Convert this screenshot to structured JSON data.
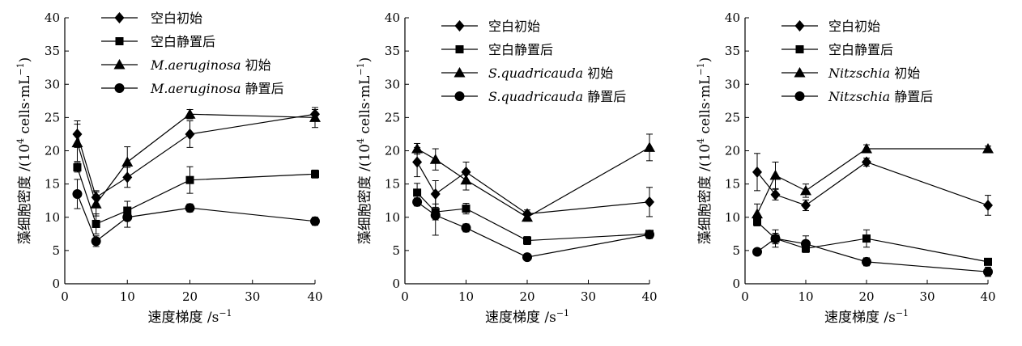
{
  "chart_data": [
    {
      "type": "line",
      "xlabel": "速度梯度 /s",
      "xlabel_sup": "−1",
      "ylabel": "藻细胞密度 /(10",
      "ylabel_sup1": "4",
      "ylabel_mid": " cells·mL",
      "ylabel_sup2": "−1",
      "ylabel_end": ")",
      "xlim": [
        0,
        40
      ],
      "ylim": [
        0,
        40
      ],
      "xticks": [
        "0",
        "10",
        "20",
        "30",
        "40"
      ],
      "yticks": [
        "0",
        "5",
        "10",
        "15",
        "20",
        "25",
        "30",
        "35",
        "40"
      ],
      "grid": false,
      "legend_position": "top-left",
      "x": [
        2,
        5,
        10,
        20,
        40
      ],
      "series": [
        {
          "name": "空白初始",
          "species": "",
          "label": "空白初始",
          "marker": "diamond",
          "values": [
            22.5,
            13,
            16,
            22.5,
            25.5
          ],
          "errors": [
            2,
            1,
            1.5,
            2,
            0.7
          ]
        },
        {
          "name": "空白静置后",
          "species": "",
          "label": "空白静置后",
          "marker": "square",
          "values": [
            17.5,
            9,
            11,
            15.6,
            16.5
          ],
          "errors": [
            0.7,
            1.5,
            1.4,
            2,
            0.6
          ]
        },
        {
          "name": "M.aeruginosa 初始",
          "species": "M.aeruginosa",
          "label": " 初始",
          "marker": "triangle",
          "values": [
            21.2,
            12,
            18.3,
            25.5,
            25
          ],
          "errors": [
            2.8,
            1.8,
            2.3,
            0.7,
            1.5
          ]
        },
        {
          "name": "M.aeruginosa 静置后",
          "species": "M.aeruginosa",
          "label": " 静置后",
          "marker": "circle",
          "values": [
            13.5,
            6.4,
            10,
            11.4,
            9.4
          ],
          "errors": [
            2.2,
            0.8,
            1.5,
            0.6,
            0.6
          ]
        }
      ]
    },
    {
      "type": "line",
      "xlabel": "速度梯度 /s",
      "xlabel_sup": "−1",
      "ylabel": "藻细胞密度 /(10",
      "ylabel_sup1": "4",
      "ylabel_mid": " cells·mL",
      "ylabel_sup2": "−1",
      "ylabel_end": ")",
      "xlim": [
        0,
        40
      ],
      "ylim": [
        0,
        40
      ],
      "xticks": [
        "0",
        "10",
        "20",
        "30",
        "40"
      ],
      "yticks": [
        "0",
        "5",
        "10",
        "15",
        "20",
        "25",
        "30",
        "35",
        "40"
      ],
      "grid": false,
      "legend_position": "top-left",
      "x": [
        2,
        5,
        10,
        20,
        40
      ],
      "series": [
        {
          "name": "空白初始",
          "species": "",
          "label": "空白初始",
          "marker": "diamond",
          "values": [
            18.3,
            13.5,
            16.8,
            10.5,
            12.3
          ],
          "errors": [
            2.2,
            2,
            1.5,
            0.6,
            2.2
          ]
        },
        {
          "name": "空白静置后",
          "species": "",
          "label": "空白静置后",
          "marker": "square",
          "values": [
            13.7,
            10.8,
            11.3,
            6.5,
            7.5
          ],
          "errors": [
            1.4,
            1.2,
            0.8,
            0.6,
            0.5
          ]
        },
        {
          "name": "S.quadricauda 初始",
          "species": "S.quadricauda",
          "label": " 初始",
          "marker": "triangle",
          "values": [
            20.3,
            18.7,
            15.6,
            10,
            20.5
          ],
          "errors": [
            0.8,
            1.6,
            1.5,
            0.6,
            2
          ]
        },
        {
          "name": "S.quadricauda 静置后",
          "species": "S.quadricauda",
          "label": " 静置后",
          "marker": "circle",
          "values": [
            12.3,
            10.3,
            8.4,
            4,
            7.4
          ],
          "errors": [
            0.6,
            3,
            0.6,
            0.3,
            0.6
          ]
        }
      ]
    },
    {
      "type": "line",
      "xlabel": "速度梯度 /s",
      "xlabel_sup": "−1",
      "ylabel": "藻细胞密度 /(10",
      "ylabel_sup1": "4",
      "ylabel_mid": " cells·mL",
      "ylabel_sup2": "−1",
      "ylabel_end": ")",
      "xlim": [
        0,
        40
      ],
      "ylim": [
        0,
        40
      ],
      "xticks": [
        "0",
        "10",
        "20",
        "30",
        "40"
      ],
      "yticks": [
        "0",
        "5",
        "10",
        "15",
        "20",
        "25",
        "30",
        "35",
        "40"
      ],
      "grid": false,
      "legend_position": "top-left",
      "x": [
        2,
        5,
        10,
        20,
        40
      ],
      "series": [
        {
          "name": "空白初始",
          "species": "",
          "label": "空白初始",
          "marker": "diamond",
          "values": [
            16.8,
            13.4,
            11.8,
            18.3,
            11.8
          ],
          "errors": [
            2.8,
            0.8,
            0.8,
            0.6,
            1.5
          ]
        },
        {
          "name": "空白静置后",
          "species": "",
          "label": "空白静置后",
          "marker": "square",
          "values": [
            9.3,
            6.8,
            5.3,
            6.8,
            3.3
          ],
          "errors": [
            0.6,
            0.8,
            0.6,
            1.3,
            0.5
          ]
        },
        {
          "name": "Nitzschia 初始",
          "species": "Nitzschia",
          "label": " 初始",
          "marker": "triangle",
          "values": [
            10.5,
            16.3,
            14,
            20.3,
            20.3
          ],
          "errors": [
            1.5,
            2,
            1,
            0.6,
            0.4
          ]
        },
        {
          "name": "Nitzschia 静置后",
          "species": "Nitzschia",
          "label": " 静置后",
          "marker": "circle",
          "values": [
            4.8,
            6.8,
            6,
            3.3,
            1.8
          ],
          "errors": [
            0.3,
            1.3,
            1.2,
            0.6,
            0.7
          ]
        }
      ]
    }
  ]
}
